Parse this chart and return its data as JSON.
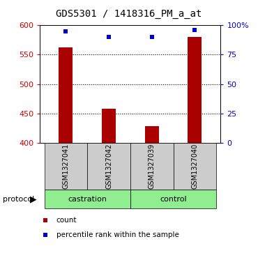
{
  "title": "GDS5301 / 1418316_PM_a_at",
  "samples": [
    "GSM1327041",
    "GSM1327042",
    "GSM1327039",
    "GSM1327040"
  ],
  "count_values": [
    563,
    458,
    428,
    580
  ],
  "percentile_values": [
    95,
    90,
    90,
    96
  ],
  "ylim_left": [
    400,
    600
  ],
  "ylim_right": [
    0,
    100
  ],
  "yticks_left": [
    400,
    450,
    500,
    550,
    600
  ],
  "yticks_right": [
    0,
    25,
    50,
    75,
    100
  ],
  "ytick_labels_right": [
    "0",
    "25",
    "50",
    "75",
    "100%"
  ],
  "ytick_labels_left": [
    "400",
    "450",
    "500",
    "550",
    "600"
  ],
  "bar_color": "#AA0000",
  "dot_color": "#0000CC",
  "sample_box_color": "#CCCCCC",
  "group_color": "#90EE90",
  "legend_red_label": "count",
  "legend_blue_label": "percentile rank within the sample",
  "protocol_label": "protocol",
  "title_fontsize": 10,
  "tick_fontsize": 8,
  "sample_fontsize": 7,
  "group_fontsize": 8,
  "legend_fontsize": 7.5
}
